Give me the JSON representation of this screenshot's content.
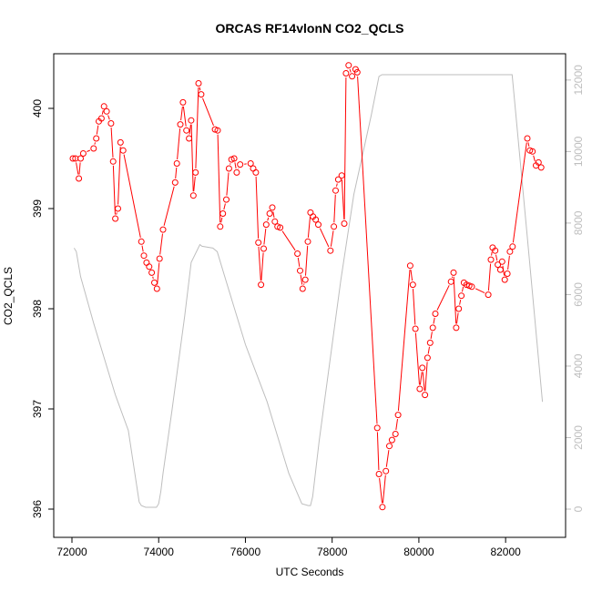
{
  "chart_data": {
    "type": "line",
    "title": "ORCAS RF14vlonN CO2_QCLS",
    "xlabel": "UTC Seconds",
    "ylabel": "CO2_QCLS",
    "xlim": [
      72000,
      82900
    ],
    "ylim": [
      396,
      400.4
    ],
    "y2lim": [
      0,
      12200
    ],
    "x_ticks": [
      72000,
      74000,
      76000,
      78000,
      80000,
      82000
    ],
    "x_tick_labels": [
      "72000",
      "74000",
      "76000",
      "78000",
      "80000",
      "82000"
    ],
    "y_ticks": [
      396,
      397,
      398,
      399,
      400
    ],
    "y_tick_labels": [
      "396",
      "397",
      "398",
      "399",
      "400"
    ],
    "y2_ticks": [
      0,
      2000,
      4000,
      6000,
      8000,
      10000,
      12000
    ],
    "y2_tick_labels": [
      "0",
      "2000",
      "4000",
      "6000",
      "8000",
      "10000",
      "12000"
    ],
    "grid": false,
    "legend": "none",
    "colors": {
      "co2": "#ff0000",
      "altitude": "#bebebe",
      "axes": "#000000",
      "right_axis": "#bebebe"
    },
    "series": [
      {
        "axis": "left",
        "style": "points-and-lines",
        "color": "#ff0000",
        "x": [
          72020,
          72080,
          72160,
          72200,
          72260,
          72500,
          72560,
          72620,
          72680,
          72740,
          72800,
          72900,
          72950,
          73000,
          73060,
          73120,
          73180,
          73600,
          73660,
          73720,
          73780,
          73840,
          73900,
          73960,
          74020,
          74100,
          74380,
          74420,
          74500,
          74560,
          74640,
          74700,
          74750,
          74800,
          74850,
          74920,
          74980,
          75300,
          75360,
          75420,
          75480,
          75560,
          75620,
          75680,
          75740,
          75800,
          75880,
          76120,
          76180,
          76240,
          76300,
          76360,
          76420,
          76480,
          76560,
          76620,
          76680,
          76740,
          76800,
          77200,
          77260,
          77320,
          77380,
          77440,
          77500,
          77560,
          77620,
          77680,
          77960,
          78040,
          78080,
          78140,
          78220,
          78280,
          78320,
          78380,
          78460,
          78540,
          78580,
          79040,
          79080,
          79160,
          79240,
          79320,
          79380,
          79460,
          79520,
          79800,
          79860,
          79920,
          80020,
          80080,
          80140,
          80200,
          80260,
          80320,
          80380,
          80740,
          80800,
          80860,
          80920,
          80980,
          81040,
          81100,
          81160,
          81220,
          81600,
          81660,
          81700,
          81760,
          81820,
          81880,
          81920,
          81980,
          82040,
          82100,
          82160,
          82500,
          82560,
          82620,
          82700,
          82760,
          82820
        ],
        "y": [
          399.5,
          399.5,
          399.3,
          399.5,
          399.55,
          399.6,
          399.7,
          399.87,
          399.9,
          400.02,
          399.97,
          399.85,
          399.47,
          398.9,
          399.0,
          399.66,
          399.58,
          398.67,
          398.53,
          398.46,
          398.42,
          398.36,
          398.26,
          398.2,
          398.5,
          398.79,
          399.26,
          399.45,
          399.84,
          400.06,
          399.78,
          399.7,
          399.88,
          399.13,
          399.36,
          400.25,
          400.14,
          399.79,
          399.78,
          398.82,
          398.95,
          399.09,
          399.4,
          399.49,
          399.5,
          399.36,
          399.44,
          399.45,
          399.4,
          399.36,
          398.66,
          398.24,
          398.6,
          398.84,
          398.95,
          399.01,
          398.87,
          398.82,
          398.81,
          398.55,
          398.38,
          398.2,
          398.29,
          398.67,
          398.96,
          398.92,
          398.89,
          398.84,
          398.58,
          398.82,
          399.18,
          399.29,
          399.33,
          398.85,
          400.35,
          400.43,
          400.32,
          400.39,
          400.36,
          396.81,
          396.35,
          396.02,
          396.38,
          396.63,
          396.69,
          396.75,
          396.94,
          398.43,
          398.24,
          397.8,
          397.2,
          397.41,
          397.14,
          397.51,
          397.66,
          397.81,
          397.95,
          398.27,
          398.36,
          397.81,
          398.0,
          398.13,
          398.26,
          398.24,
          398.23,
          398.22,
          398.14,
          398.49,
          398.61,
          398.58,
          398.44,
          398.39,
          398.47,
          398.29,
          398.35,
          398.57,
          398.62,
          399.7,
          399.58,
          399.57,
          399.43,
          399.46,
          399.41
        ]
      },
      {
        "axis": "right",
        "style": "line",
        "color": "#bebebe",
        "x": [
          72050,
          72100,
          72200,
          72500,
          72800,
          73000,
          73300,
          73550,
          73600,
          73700,
          73950,
          74000,
          74050,
          74100,
          74300,
          74600,
          74750,
          74950,
          75000,
          75250,
          75350,
          75600,
          76000,
          76500,
          76900,
          77000,
          77300,
          77450,
          77500,
          77550,
          77700,
          78200,
          78500,
          78900,
          79080,
          79150,
          79300,
          80000,
          81000,
          81500,
          82000,
          82150,
          82200,
          82500,
          82850
        ],
        "y": [
          7300,
          7200,
          6500,
          5200,
          4000,
          3200,
          2200,
          200,
          100,
          50,
          50,
          150,
          500,
          1000,
          2700,
          5400,
          6900,
          7400,
          7350,
          7300,
          7200,
          6200,
          4600,
          3000,
          1400,
          1000,
          150,
          100,
          100,
          350,
          1900,
          6400,
          8800,
          11000,
          12100,
          12150,
          12150,
          12150,
          12150,
          12150,
          12150,
          12150,
          11500,
          7600,
          3000
        ]
      }
    ]
  }
}
